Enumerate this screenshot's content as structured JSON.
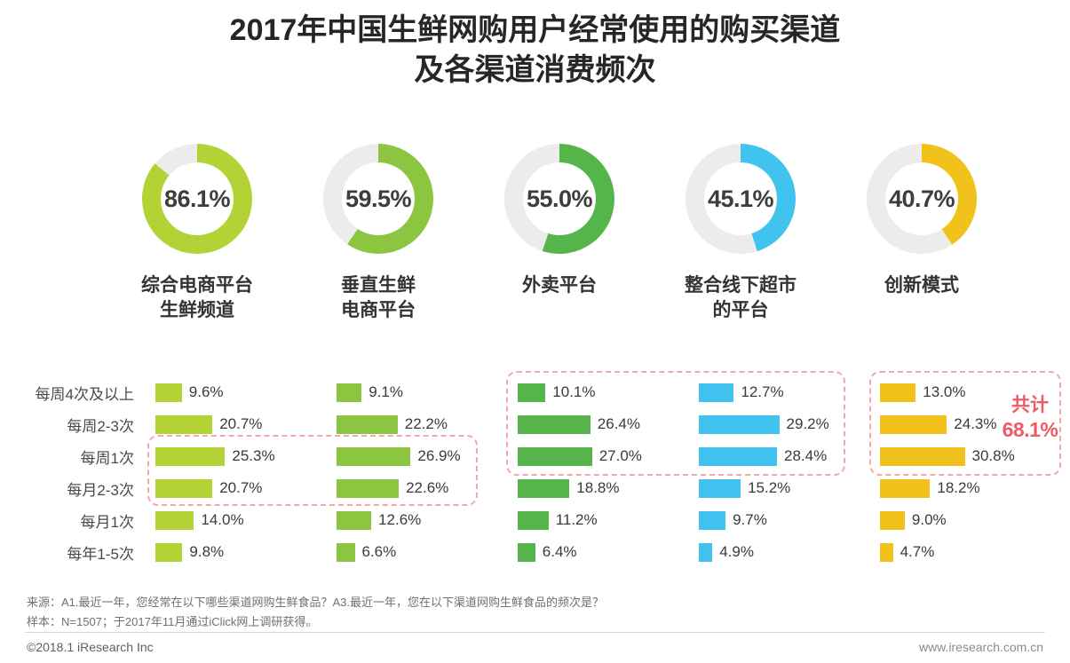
{
  "title": {
    "line1": "2017年中国生鲜网购用户经常使用的购买渠道",
    "line2": "及各渠道消费频次"
  },
  "chart_data": [
    {
      "type": "pie",
      "subtype": "donut",
      "name": "channel-usage-rate",
      "track_color": "#ececec",
      "items": [
        {
          "label": "综合电商平台生鲜频道",
          "label_lines": [
            "综合电商平台",
            "生鲜频道"
          ],
          "value": 86.1,
          "color": "#b2d235"
        },
        {
          "label": "垂直生鲜电商平台",
          "label_lines": [
            "垂直生鲜",
            "电商平台"
          ],
          "value": 59.5,
          "color": "#8cc641"
        },
        {
          "label": "外卖平台",
          "label_lines": [
            "外卖平台"
          ],
          "value": 55.0,
          "color": "#56b54a"
        },
        {
          "label": "整合线下超市的平台",
          "label_lines": [
            "整合线下超市",
            "的平台"
          ],
          "value": 45.1,
          "color": "#41c3ef"
        },
        {
          "label": "创新模式",
          "label_lines": [
            "创新模式"
          ],
          "value": 40.7,
          "color": "#f2c21c"
        }
      ]
    },
    {
      "type": "bar",
      "name": "channel-frequency",
      "orientation": "horizontal",
      "value_suffix": "%",
      "categories": [
        "每周4次及以上",
        "每周2-3次",
        "每周1次",
        "每月2-3次",
        "每月1次",
        "每年1-5次"
      ],
      "series": [
        {
          "name": "综合电商平台生鲜频道",
          "color": "#b2d235",
          "values": [
            9.6,
            20.7,
            25.3,
            20.7,
            14.0,
            9.8
          ]
        },
        {
          "name": "垂直生鲜电商平台",
          "color": "#8cc641",
          "values": [
            9.1,
            22.2,
            26.9,
            22.6,
            12.6,
            6.6
          ]
        },
        {
          "name": "外卖平台",
          "color": "#56b54a",
          "values": [
            10.1,
            26.4,
            27.0,
            18.8,
            11.2,
            6.4
          ]
        },
        {
          "name": "整合线下超市的平台",
          "color": "#41c3ef",
          "values": [
            12.7,
            29.2,
            28.4,
            15.2,
            9.7,
            4.9
          ]
        },
        {
          "name": "创新模式",
          "color": "#f2c21c",
          "values": [
            13.0,
            24.3,
            30.8,
            18.2,
            9.0,
            4.7
          ]
        }
      ],
      "highlight": {
        "border_color": "#f3a6ad",
        "text_color": "#f05a64",
        "annotation": {
          "label": "共计",
          "value": "68.1%"
        }
      }
    }
  ],
  "footer": {
    "source_note": "来源：A1.最近一年，您经常在以下哪些渠道网购生鲜食品？A3.最近一年，您在以下渠道网购生鲜食品的频次是？",
    "sample_note": "样本：N=1507；于2017年11月通过iClick网上调研获得。",
    "copyright": "©2018.1 iResearch Inc",
    "website": "www.iresearch.com.cn"
  }
}
